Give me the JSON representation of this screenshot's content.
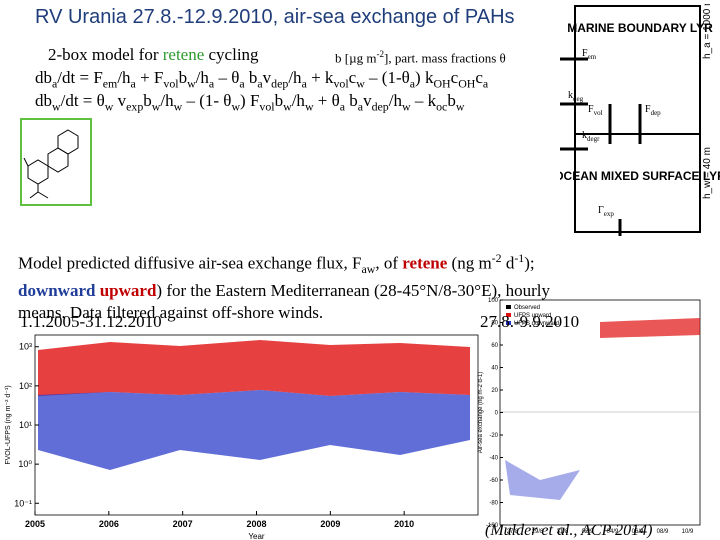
{
  "title": "RV Urania 27.8.-12.9.2010, air-sea exchange of PAHs",
  "model_line": [
    "2-box model for ",
    {
      "text": "retene",
      "color": "#2e9a2e"
    },
    " cycling"
  ],
  "units_note": [
    "b [µg m",
    {
      "text": "-2",
      "style": "sup"
    },
    "], part. mass fractions θ"
  ],
  "eq1": [
    "db",
    {
      "text": "a",
      "style": "sub"
    },
    "/dt = F",
    {
      "text": "em",
      "style": "sub"
    },
    "/h",
    {
      "text": "a",
      "style": "sub"
    },
    " + F",
    {
      "text": "vol",
      "style": "sub"
    },
    "b",
    {
      "text": "w",
      "style": "sub"
    },
    "/h",
    {
      "text": "a",
      "style": "sub"
    },
    " – θ",
    {
      "text": "a",
      "style": "sub"
    },
    " b",
    {
      "text": "a",
      "style": "sub"
    },
    "v",
    {
      "text": "dep",
      "style": "sub"
    },
    "/h",
    {
      "text": "a",
      "style": "sub"
    },
    " + k",
    {
      "text": "vol",
      "style": "sub"
    },
    "c",
    {
      "text": "w",
      "style": "sub"
    },
    " – (1-θ",
    {
      "text": "a",
      "style": "sub"
    },
    ") k",
    {
      "text": "OH",
      "style": "sub"
    },
    "c",
    {
      "text": "OH",
      "style": "sub"
    },
    "c",
    {
      "text": "a",
      "style": "sub"
    }
  ],
  "eq2": [
    "db",
    {
      "text": "w",
      "style": "sub"
    },
    "/dt = θ",
    {
      "text": "w",
      "style": "sub"
    },
    " v",
    {
      "text": "exp",
      "style": "sub"
    },
    "b",
    {
      "text": "w",
      "style": "sub"
    },
    "/h",
    {
      "text": "w",
      "style": "sub"
    },
    " – (1- θ",
    {
      "text": "w",
      "style": "sub"
    },
    ") F",
    {
      "text": "vol",
      "style": "sub"
    },
    "b",
    {
      "text": "w",
      "style": "sub"
    },
    "/h",
    {
      "text": "w",
      "style": "sub"
    },
    " +  θ",
    {
      "text": "a",
      "style": "sub"
    },
    " b",
    {
      "text": "a",
      "style": "sub"
    },
    "v",
    {
      "text": "dep",
      "style": "sub"
    },
    "/h",
    {
      "text": "w",
      "style": "sub"
    },
    " – k",
    {
      "text": "oc",
      "style": "sub"
    },
    "b",
    {
      "text": "w",
      "style": "sub"
    }
  ],
  "paragraph": [
    "Model predicted diffusive air-sea exchange flux, F",
    {
      "text": "aw",
      "style": "sub"
    },
    ", of ",
    {
      "text": "retene",
      "color": "#c00000",
      "bold": true
    },
    " (ng m",
    {
      "text": "-2",
      "style": "sup"
    },
    " d",
    {
      "text": "-1",
      "style": "sup"
    },
    "); ",
    {
      "text": "downward",
      "color": "#1f3d99",
      "bold": true
    },
    " ",
    {
      "text": "upward",
      "color": "#c00000",
      "bold": true
    },
    ") for the Eastern Mediterranean (28-45°N/8-30°E), hourly means. Data filtered against off-shore winds."
  ],
  "period_left": "1.1.2005-31.12.2010",
  "period_right": "27.8.-9.9.2010",
  "diagram": {
    "top_box": "MARINE BOUNDARY LYR",
    "bottom_box": "OCEAN MIXED SURFACE LYR",
    "f_em": [
      "F",
      {
        "text": "em",
        "style": "sub"
      }
    ],
    "k_deg": [
      "k",
      {
        "text": "deg",
        "style": "sub"
      }
    ],
    "f_vol": [
      "F",
      {
        "text": "vol",
        "style": "sub"
      }
    ],
    "f_dep": [
      "F",
      {
        "text": "dep",
        "style": "sub"
      }
    ],
    "k_degr": [
      "k",
      {
        "text": "degr",
        "style": "sub"
      }
    ],
    "g_exp": [
      "Γ",
      {
        "text": "exp",
        "style": "sub"
      }
    ],
    "h_a": "h_a = 1000 m",
    "h_w": "h_w = 40 m"
  },
  "left_chart": {
    "type": "scatter",
    "x_label": "Year",
    "y_label": "FVOL-UFPS (ng m⁻² d⁻¹)",
    "xlim": [
      2005,
      2011
    ],
    "xticks": [
      2005,
      2006,
      2007,
      2008,
      2009,
      2010
    ],
    "ylim": [
      -1.3,
      3.3
    ],
    "yticks": [
      {
        "value": -1,
        "label": "10⁻¹"
      },
      {
        "value": 0,
        "label": "10⁰"
      },
      {
        "value": 1,
        "label": "10¹"
      },
      {
        "value": 2,
        "label": "10²"
      },
      {
        "value": 3,
        "label": "10³"
      }
    ]
  },
  "right_chart": {
    "type": "scatter",
    "y_label": "Air-sea exchange (ng m-2 d-1)",
    "legend": [
      "Observed",
      "UFPS upward",
      "UFPS downward"
    ],
    "ylim": [
      -100,
      100
    ],
    "yticks": [
      100,
      80,
      60,
      40,
      20,
      0,
      -20,
      -40,
      -60,
      -80,
      -100
    ],
    "categories": [
      "27/8",
      "29/8",
      "31/8",
      "02/9",
      "04/9",
      "06/9",
      "08/9",
      "10/9"
    ]
  },
  "citation": "(Mulder et al., ACP 2014)"
}
